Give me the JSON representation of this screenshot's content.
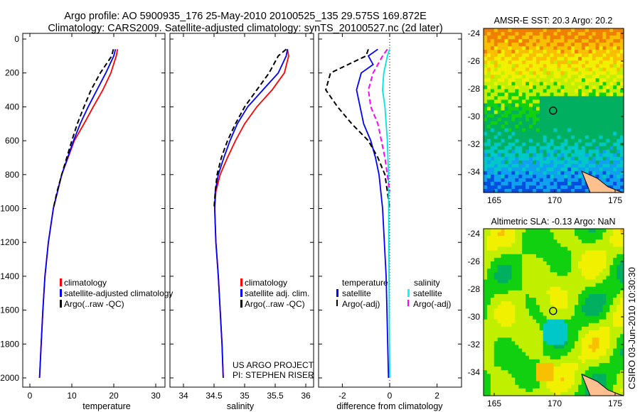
{
  "title_line1": "Argo profile: AO 5900935_176 25-May-2010 20100525_135 29.575S 169.872E",
  "title_line2": "Climatology: CARS2009. Satellite-adjusted climatology: synTS_20100527.nc (2d later)",
  "footer_vertical": "CSIRO 03-Jun-2010 10:30:30",
  "project_line1": "US ARGO PROJECT",
  "project_line2": "PI: STEPHEN RISER",
  "chart_data": [
    {
      "type": "line",
      "xlabel": "temperature",
      "ylabel": "",
      "xlim": [
        -2,
        32
      ],
      "ylim": [
        2000,
        0
      ],
      "xticks": [
        "0",
        "10",
        "20",
        "30"
      ],
      "yticks": [
        "0",
        "200",
        "400",
        "600",
        "800",
        "1000",
        "1200",
        "1400",
        "1600",
        "1800",
        "2000"
      ],
      "legend": [
        "climatology",
        "satellite-adjusted climatology",
        "Argo(..raw -QC)"
      ],
      "series": [
        {
          "name": "climatology",
          "color": "#ff0000",
          "depth": [
            60,
            100,
            200,
            300,
            400,
            500,
            600,
            700,
            800,
            1000,
            1200,
            1400,
            1600,
            1800,
            2000
          ],
          "values": [
            20.9,
            20.6,
            19.3,
            17.4,
            15.1,
            12.9,
            10.6,
            9.1,
            7.6,
            5.6,
            4.4,
            3.6,
            3.1,
            2.7,
            2.3
          ]
        },
        {
          "name": "satellite-adjusted climatology",
          "color": "#0000ff",
          "depth": [
            60,
            100,
            200,
            300,
            400,
            500,
            600,
            700,
            800,
            1000,
            1200,
            1400,
            1600,
            1800,
            2000
          ],
          "values": [
            20.4,
            20.0,
            18.1,
            16.0,
            13.9,
            12.0,
            10.4,
            9.0,
            7.6,
            5.6,
            4.4,
            3.6,
            3.1,
            2.7,
            2.3
          ]
        },
        {
          "name": "Argo(..raw -QC)",
          "color": "#000000",
          "dash": true,
          "depth": [
            60,
            100,
            200,
            300,
            400,
            500,
            600,
            700,
            800,
            900,
            1000
          ],
          "values": [
            19.9,
            19.5,
            16.8,
            14.6,
            12.9,
            11.3,
            10.0,
            8.8,
            7.6,
            6.5,
            5.6
          ]
        }
      ]
    },
    {
      "type": "line",
      "xlabel": "salinity",
      "xlim": [
        33.8,
        36.05
      ],
      "ylim": [
        2000,
        0
      ],
      "xticks": [
        "34",
        "34.5",
        "35",
        "35.5",
        "36"
      ],
      "legend": [
        "climatology",
        "satellite adj. clim.",
        "Argo(..raw -QC)"
      ],
      "series": [
        {
          "name": "climatology",
          "color": "#ff0000",
          "depth": [
            60,
            100,
            200,
            300,
            400,
            500,
            600,
            700,
            800,
            900,
            1000,
            1200,
            1400,
            1600,
            1800,
            2000
          ],
          "values": [
            35.7,
            35.72,
            35.65,
            35.45,
            35.2,
            35.0,
            34.85,
            34.72,
            34.6,
            34.53,
            34.51,
            34.53,
            34.57,
            34.6,
            34.63,
            34.65
          ]
        },
        {
          "name": "satellite adj. clim.",
          "color": "#0000ff",
          "depth": [
            60,
            100,
            200,
            300,
            400,
            500,
            600,
            700,
            800,
            900,
            1000,
            1200,
            1400,
            1600,
            1800,
            2000
          ],
          "values": [
            35.7,
            35.68,
            35.55,
            35.3,
            35.05,
            34.88,
            34.76,
            34.66,
            34.57,
            34.52,
            34.51,
            34.53,
            34.57,
            34.6,
            34.63,
            34.65
          ]
        },
        {
          "name": "Argo(..raw -QC)",
          "color": "#000000",
          "dash": true,
          "depth": [
            60,
            100,
            200,
            300,
            400,
            500,
            600,
            700,
            800,
            900,
            1000
          ],
          "values": [
            35.68,
            35.55,
            35.4,
            35.2,
            35.0,
            34.85,
            34.72,
            34.62,
            34.55,
            34.52,
            34.5
          ]
        }
      ]
    },
    {
      "type": "line",
      "xlabel": "difference from climatology",
      "xlim": [
        -3,
        3
      ],
      "ylim": [
        2000,
        0
      ],
      "xticks": [
        "-2",
        "0",
        "2"
      ],
      "legend_headers": [
        "temperature",
        "salinity"
      ],
      "legend": [
        "satellite",
        "Argo(-adj)",
        "satellite",
        "Argo(-adj)"
      ],
      "series": [
        {
          "name": "temperature satellite",
          "color": "#0000ff",
          "depth": [
            60,
            100,
            150,
            200,
            300,
            400,
            500,
            600,
            700,
            800,
            1000,
            1400,
            2000
          ],
          "values": [
            -0.5,
            -0.9,
            -0.7,
            -1.2,
            -1.4,
            -1.25,
            -1.1,
            -0.8,
            -0.6,
            -0.45,
            -0.3,
            -0.15,
            -0.05
          ]
        },
        {
          "name": "temperature Argo(-adj)",
          "color": "#000000",
          "dash": true,
          "depth": [
            60,
            100,
            200,
            300,
            400,
            500,
            600,
            700,
            800,
            900,
            1000
          ],
          "values": [
            -0.9,
            -1.0,
            -2.5,
            -2.7,
            -2.2,
            -1.6,
            -0.9,
            -0.5,
            -0.2,
            -0.1,
            0
          ]
        },
        {
          "name": "salinity satellite",
          "color": "#00e5e5",
          "depth": [
            60,
            100,
            200,
            300,
            400,
            600,
            800,
            2000
          ],
          "values": [
            0,
            -0.1,
            -0.25,
            -0.3,
            -0.2,
            -0.1,
            -0.05,
            0
          ]
        },
        {
          "name": "salinity Argo(-adj)",
          "color": "#ff00ff",
          "dash": true,
          "depth": [
            60,
            100,
            200,
            300,
            400,
            500,
            700,
            900
          ],
          "values": [
            -0.1,
            -0.3,
            -0.7,
            -0.9,
            -0.8,
            -0.5,
            -0.2,
            0
          ]
        }
      ]
    },
    {
      "type": "heatmap",
      "title": "AMSR-E SST: 20.3 Argo: 20.2",
      "xticks": [
        "165",
        "170",
        "175"
      ],
      "yticks": [
        "-24",
        "-26",
        "-28",
        "-30",
        "-32",
        "-34"
      ],
      "argo_lon": 169.872,
      "argo_lat": -29.575
    },
    {
      "type": "heatmap",
      "title": "Altimetric SLA: -0.13 Argo: NaN",
      "xticks": [
        "165",
        "170",
        "175"
      ],
      "yticks": [
        "-24",
        "-26",
        "-28",
        "-30",
        "-32",
        "-34"
      ],
      "argo_lon": 169.872,
      "argo_lat": -29.575
    }
  ]
}
